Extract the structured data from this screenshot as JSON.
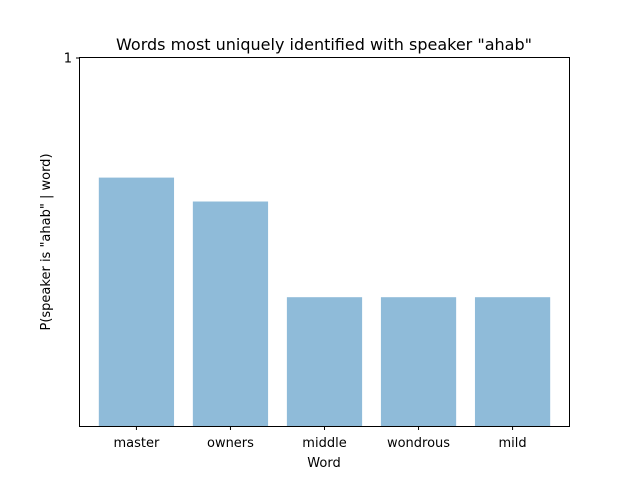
{
  "chart_data": {
    "type": "bar",
    "title": "Words most uniquely identified with speaker \"ahab\"",
    "xlabel": "Word",
    "ylabel": "P(speaker is \"ahab\" | word)",
    "categories": [
      "master",
      "owners",
      "middle",
      "wondrous",
      "mild"
    ],
    "values": [
      0.675,
      0.61,
      0.35,
      0.35,
      0.35
    ],
    "ylim": [
      0,
      1
    ],
    "yticks": [
      1
    ],
    "ytick_labels": [
      "1"
    ],
    "bar_color": "#8fbbd9",
    "grid": false,
    "legend": "none"
  }
}
